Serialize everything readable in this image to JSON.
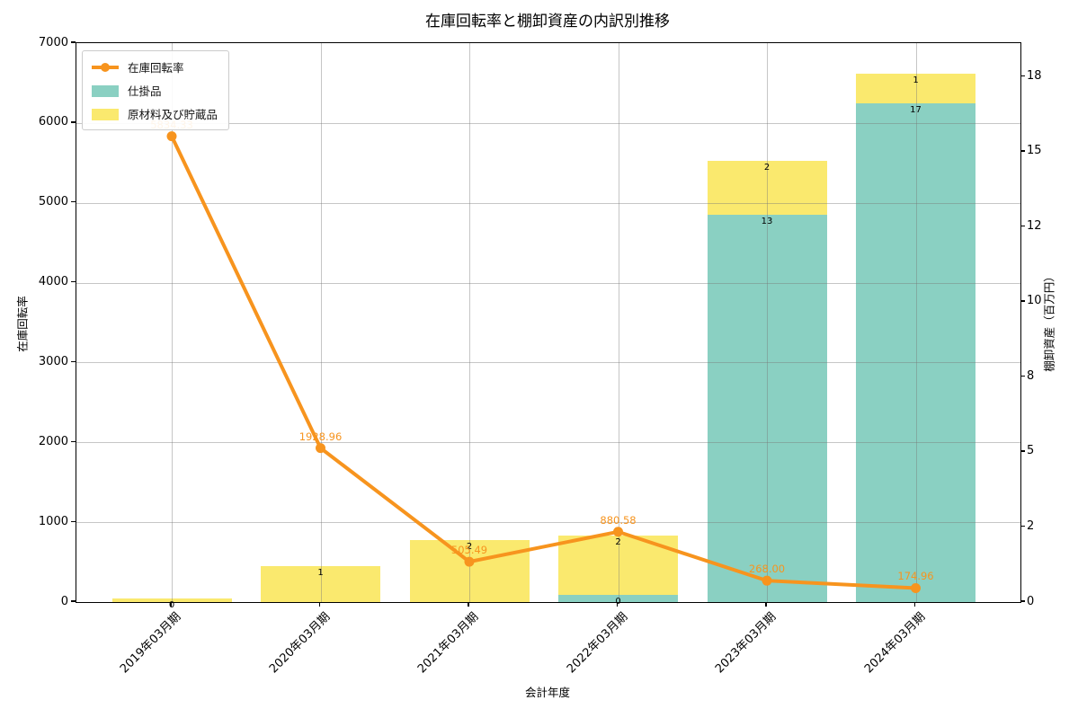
{
  "title": "在庫回転率と棚卸資産の内訳別推移",
  "axes": {
    "x_label": "会計年度",
    "y_left_label": "在庫回転率",
    "y_right_label": "棚卸資産（百万円）",
    "y_left_ticks": [
      0,
      1000,
      2000,
      3000,
      4000,
      5000,
      6000,
      7000
    ],
    "y_right_ticks": [
      {
        "label": "0",
        "value": 0
      },
      {
        "label": "2",
        "value": 2.5
      },
      {
        "label": "5",
        "value": 5
      },
      {
        "label": "8",
        "value": 7.5
      },
      {
        "label": "10",
        "value": 10
      },
      {
        "label": "12",
        "value": 12.5
      },
      {
        "label": "15",
        "value": 15
      },
      {
        "label": "18",
        "value": 17.5
      }
    ]
  },
  "legend": [
    {
      "label": "在庫回転率",
      "type": "line",
      "color": "#F7941E"
    },
    {
      "label": "仕掛品",
      "type": "patch",
      "color": "#8AD0C2"
    },
    {
      "label": "原材料及び貯蔵品",
      "type": "patch",
      "color": "#FAE96E"
    }
  ],
  "chart_data": {
    "type": "combo",
    "subtype": "stacked-bar + line, dual y-axis",
    "categories": [
      "2019年03月期",
      "2020年03月期",
      "2021年03月期",
      "2022年03月期",
      "2023年03月期",
      "2024年03月期"
    ],
    "line_series": {
      "name": "在庫回転率",
      "axis": "left",
      "color": "#F7941E",
      "values": [
        5834.33,
        1928.96,
        505.49,
        880.58,
        268.0,
        174.96
      ],
      "labels": [
        "5834.33",
        "1928.96",
        "505.49",
        "880.58",
        "268.00",
        "174.96"
      ]
    },
    "bar_series": [
      {
        "name": "仕掛品",
        "axis": "right",
        "color": "#8AD0C2",
        "values": [
          0,
          0,
          0,
          0.24,
          12.9,
          16.6
        ],
        "labels": [
          "",
          "",
          "",
          "0",
          "13",
          "17"
        ]
      },
      {
        "name": "原材料及び貯蔵品",
        "axis": "right",
        "color": "#FAE96E",
        "values": [
          0.12,
          1.2,
          2.06,
          1.97,
          1.8,
          1.0
        ],
        "labels": [
          "0",
          "1",
          "2",
          "2",
          "2",
          "1"
        ]
      }
    ],
    "stacked": true,
    "grid": true,
    "legend_position": "upper left",
    "y_left_range": [
      0,
      7000
    ],
    "y_right_range": [
      0,
      18.62
    ]
  }
}
